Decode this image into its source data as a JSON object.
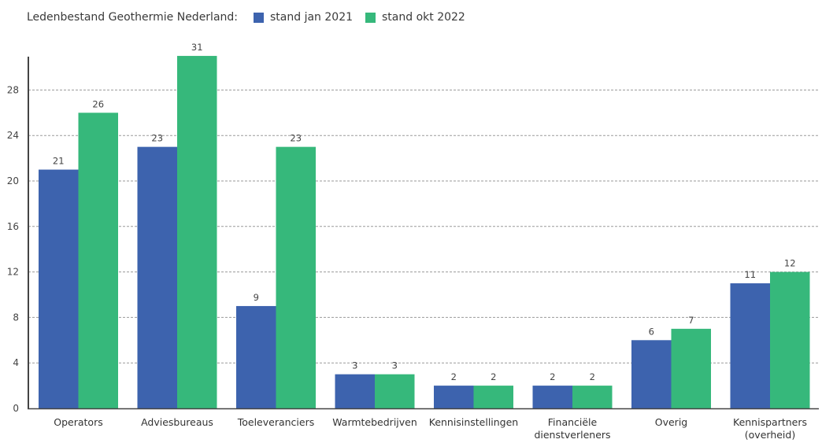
{
  "legend": {
    "title": "Ledenbestand Geothermie Nederland:"
  },
  "chart_data": {
    "type": "bar",
    "title": "",
    "xlabel": "",
    "ylabel": "",
    "ylim": [
      0,
      31
    ],
    "yticks": [
      0,
      4,
      8,
      12,
      16,
      20,
      24,
      28
    ],
    "grid": true,
    "legend_position": "top-left",
    "categories": [
      [
        "Operators"
      ],
      [
        "Adviesbureaus"
      ],
      [
        "Toeleveranciers"
      ],
      [
        "Warmtebedrijven"
      ],
      [
        "Kennisinstellingen"
      ],
      [
        "Financiële",
        "dienstverleners"
      ],
      [
        "Overig"
      ],
      [
        "Kennispartners",
        "(overheid)"
      ]
    ],
    "series": [
      {
        "name": "stand jan 2021",
        "color": "#3d63ae",
        "values": [
          21,
          23,
          9,
          3,
          2,
          2,
          6,
          11
        ]
      },
      {
        "name": "stand okt 2022",
        "color": "#36b87b",
        "values": [
          26,
          31,
          23,
          3,
          2,
          2,
          7,
          12
        ]
      }
    ]
  }
}
